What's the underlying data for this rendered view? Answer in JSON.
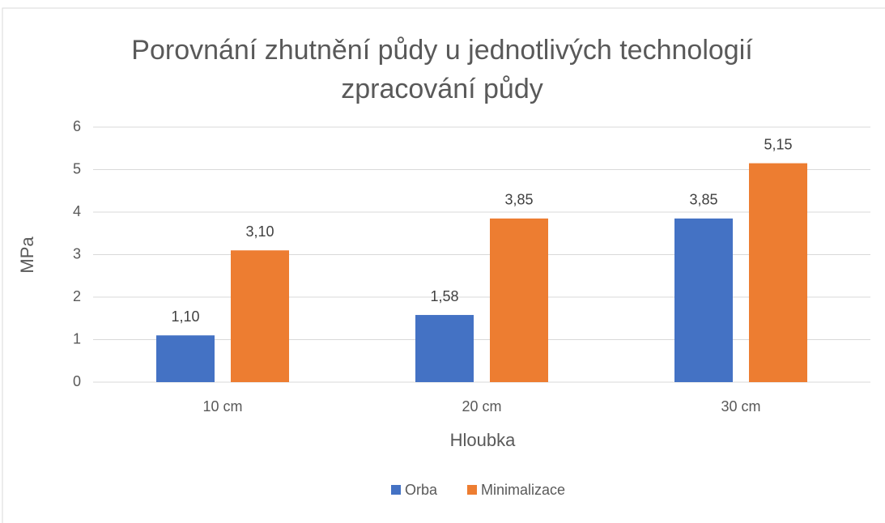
{
  "chart_data": {
    "type": "bar",
    "title": "Porovnání zhutnění půdy u jednotlivých technologií zpracování půdy",
    "x_label": "Hloubka",
    "y_label": "MPa",
    "categories": [
      "10 cm",
      "20 cm",
      "30 cm"
    ],
    "series": [
      {
        "name": "Orba",
        "color": "#4472c4",
        "values": [
          1.1,
          1.58,
          3.85
        ],
        "value_labels": [
          "1,10",
          "1,58",
          "3,85"
        ]
      },
      {
        "name": "Minimalizace",
        "color": "#ed7d31",
        "values": [
          3.1,
          3.85,
          5.15
        ],
        "value_labels": [
          "3,10",
          "3,85",
          "5,15"
        ]
      }
    ],
    "ylim": [
      0,
      6
    ],
    "yticks": [
      0,
      1,
      2,
      3,
      4,
      5,
      6
    ],
    "grid": true,
    "legend": "bottom"
  }
}
